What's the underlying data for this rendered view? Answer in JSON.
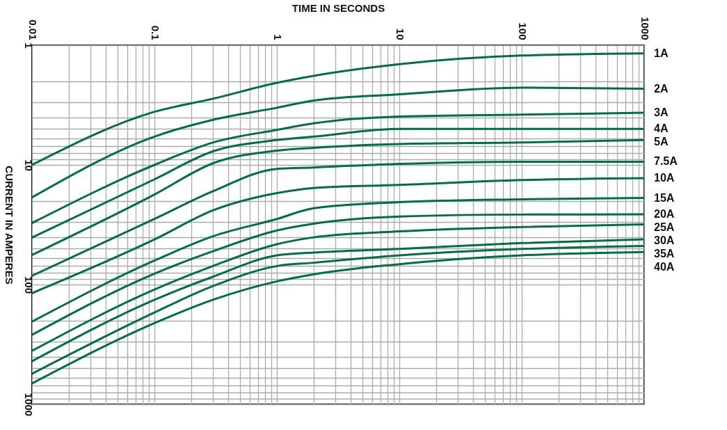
{
  "chart_data": {
    "type": "line",
    "xlabel": "TIME IN SECONDS",
    "ylabel": "CURRENT IN AMPERES",
    "log": "xy",
    "grid": true,
    "marker": "none",
    "line_style": "solid",
    "x": [
      0.01,
      0.1,
      0.3,
      1,
      2,
      10,
      100,
      1000
    ],
    "xlim": [
      0.01,
      1000
    ],
    "xticks": [
      0.01,
      0.1,
      1,
      10,
      100,
      1000
    ],
    "ylim": [
      1000,
      1
    ],
    "yticks": [
      1,
      10,
      100,
      1000
    ],
    "series": [
      {
        "name": "1A",
        "color": "#00703c",
        "values": [
          10,
          3.6,
          2.8,
          2.06,
          1.8,
          1.44,
          1.22,
          1.17
        ]
      },
      {
        "name": "2A",
        "color": "#00703c",
        "values": [
          18.7,
          5.8,
          4.2,
          3.33,
          2.9,
          2.57,
          2.26,
          2.31
        ]
      },
      {
        "name": "3A",
        "color": "#00703c",
        "values": [
          30.6,
          10,
          6.5,
          5.1,
          4.5,
          3.94,
          3.8,
          3.67
        ]
      },
      {
        "name": "4A",
        "color": "#00703c",
        "values": [
          40.5,
          13.2,
          7.7,
          6.2,
          5.8,
          5.0,
          5.0,
          5.0
        ]
      },
      {
        "name": "5A",
        "color": "#00703c",
        "values": [
          56.6,
          17.7,
          9.7,
          7.6,
          7.2,
          6.7,
          6.5,
          6.2
        ]
      },
      {
        "name": "7.5A",
        "color": "#00703c",
        "values": [
          84.5,
          28.3,
          16.6,
          10.8,
          10.5,
          9.8,
          9.4,
          9.4
        ]
      },
      {
        "name": "10A",
        "color": "#00703c",
        "values": [
          118,
          42,
          24,
          17.2,
          15.6,
          14.7,
          13.4,
          12.9
        ]
      },
      {
        "name": "15A",
        "color": "#00703c",
        "values": [
          204,
          63,
          39.5,
          28.3,
          23,
          20.5,
          19.4,
          18.9
        ]
      },
      {
        "name": "20A",
        "color": "#00703c",
        "values": [
          263,
          81,
          52.7,
          35.3,
          31,
          27,
          26,
          25.9
        ]
      },
      {
        "name": "25A",
        "color": "#00703c",
        "values": [
          358,
          110,
          70,
          46,
          40.3,
          35.9,
          33,
          31.4
        ]
      },
      {
        "name": "30A",
        "color": "#00703c",
        "values": [
          437,
          134,
          86,
          57,
          54,
          50.4,
          45,
          41.9
        ]
      },
      {
        "name": "35A",
        "color": "#00703c",
        "values": [
          556,
          171,
          103,
          70,
          65.7,
          57,
          50.4,
          47.5
        ]
      },
      {
        "name": "40A",
        "color": "#00703c",
        "values": [
          670,
          210,
          134,
          94,
          82,
          67.5,
          57,
          53.4
        ]
      }
    ]
  }
}
